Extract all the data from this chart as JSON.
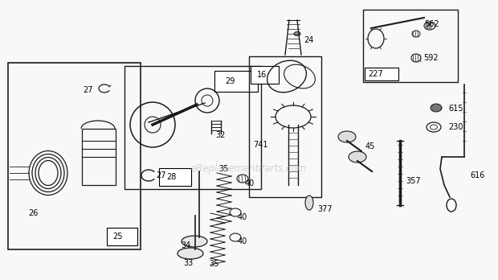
{
  "bg_color": "#f8f8f8",
  "lc": "#1a1a1a",
  "watermark": "eReplacementParts.com",
  "wm_color": "#bbbbbb",
  "figw": 6.2,
  "figh": 3.48,
  "dpi": 100
}
